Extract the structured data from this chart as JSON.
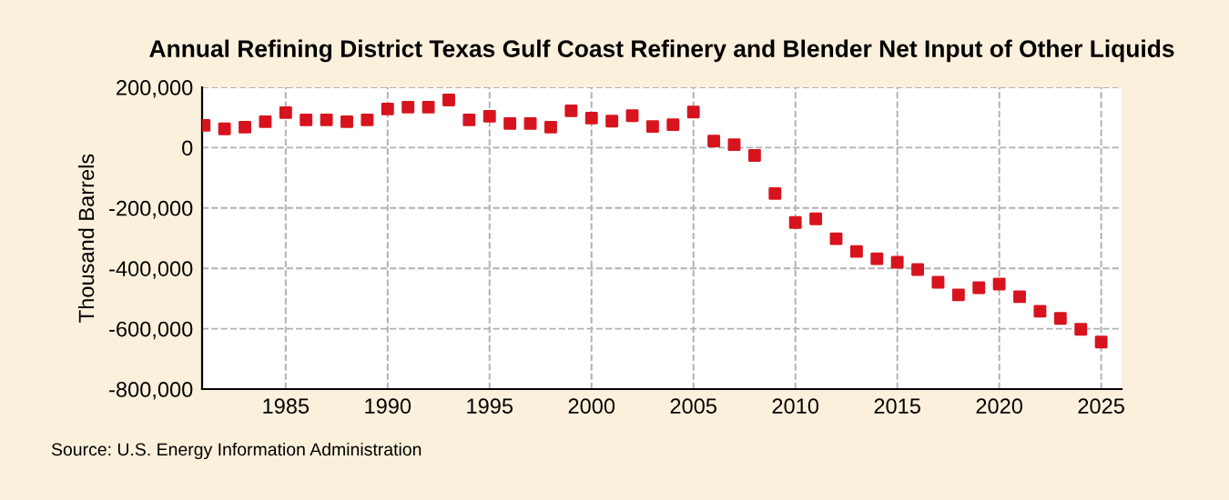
{
  "chart_data": {
    "type": "scatter",
    "title": "Annual Refining District Texas Gulf Coast Refinery and Blender Net Input of Other Liquids",
    "ylabel": "Thousand Barrels",
    "x": [
      1981,
      1982,
      1983,
      1984,
      1985,
      1986,
      1987,
      1988,
      1989,
      1990,
      1991,
      1992,
      1993,
      1994,
      1995,
      1996,
      1997,
      1998,
      1999,
      2000,
      2001,
      2002,
      2003,
      2004,
      2005,
      2006,
      2007,
      2008,
      2009,
      2010,
      2011,
      2012,
      2013,
      2014,
      2015,
      2016,
      2017,
      2018,
      2019,
      2020,
      2021,
      2022,
      2023,
      2024,
      2025
    ],
    "series": [
      {
        "color": "#d7141e",
        "values": [
          74000,
          62000,
          68000,
          86000,
          116000,
          92000,
          92000,
          86000,
          92000,
          128000,
          134000,
          134000,
          158000,
          92000,
          104000,
          80000,
          80000,
          68000,
          122000,
          98000,
          88000,
          106000,
          70000,
          76000,
          118000,
          22000,
          10000,
          -26000,
          -152000,
          -248000,
          -236000,
          -302000,
          -344000,
          -368000,
          -380000,
          -404000,
          -446000,
          -488000,
          -464000,
          -452000,
          -494000,
          -542000,
          -566000,
          -602000,
          -644000
        ]
      }
    ],
    "xlim": [
      1980.9,
      2026
    ],
    "xticks": [
      1985,
      1990,
      1995,
      2000,
      2005,
      2010,
      2015,
      2020,
      2025
    ],
    "ylim": [
      -800000,
      200000
    ],
    "yticks": [
      {
        "value": -800000,
        "label": "-800,000"
      },
      {
        "value": -600000,
        "label": "-600,000"
      },
      {
        "value": -400000,
        "label": "-400,000"
      },
      {
        "value": -200000,
        "label": "-200,000"
      },
      {
        "value": 0,
        "label": "0"
      },
      {
        "value": 200000,
        "label": "200,000"
      }
    ],
    "grid": true,
    "marker": "square",
    "legend": false,
    "annotations": [
      "Source: U.S. Energy Information Administration"
    ]
  }
}
